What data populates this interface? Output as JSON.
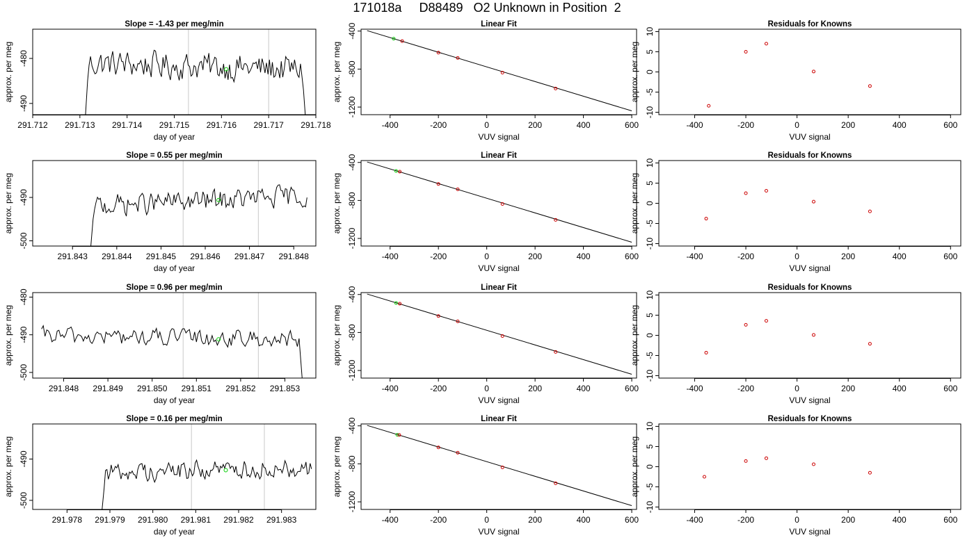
{
  "page": {
    "title": "171018a     D88489   O2 Unknown in Position  2"
  },
  "colors": {
    "axis": "#000000",
    "trace": "#000000",
    "marker_lines": "#c8c8c8",
    "unknown_point": "#00cc00",
    "known_points": "#cc0000",
    "fit_line": "#000000"
  },
  "chart_data": [
    {
      "type": "line",
      "title": "Slope =  -1.43  per meg/min",
      "xlabel": "day of year",
      "ylabel": "approx. per meg",
      "xlim": [
        291.712,
        291.718
      ],
      "ylim": [
        -492.5,
        -473.5
      ],
      "xticks": [
        "291.712",
        "291.713",
        "291.714",
        "291.715",
        "291.716",
        "291.717",
        "291.718"
      ],
      "xtick_values": [
        291.712,
        291.713,
        291.714,
        291.715,
        291.716,
        291.717,
        291.718
      ],
      "yticks": [
        -480,
        -490
      ],
      "yticks_labels": [
        "-480",
        "-490"
      ],
      "vlines": [
        291.7153,
        291.717
      ],
      "trace_x_range": [
        291.7131,
        291.7178
      ],
      "trace_level": [
        -481.0,
        -482.5
      ],
      "trace_drop_start": [
        -496,
        -485
      ],
      "trace_drop_end": [
        -487,
        -496
      ],
      "trace_amp": 2.1,
      "unknown_point": {
        "x": 291.7161,
        "y": -482.4
      }
    },
    {
      "type": "scatter",
      "title": "Linear Fit",
      "xlabel": "VUV signal",
      "ylabel": "approx. per meg",
      "xlim": [
        -520,
        620
      ],
      "ylim": [
        -1280,
        -380
      ],
      "xticks": [
        "-400",
        "-200",
        "0",
        "200",
        "400",
        "600"
      ],
      "xtick_values": [
        -400,
        -200,
        0,
        200,
        400,
        600
      ],
      "yticks": [
        -400,
        -800,
        -1200
      ],
      "yticks_labels": [
        "-400",
        "-800",
        "-1200"
      ],
      "fit_line": {
        "x": [
          -495,
          600
        ],
        "y": [
          -395,
          -1240
        ]
      },
      "unknown": {
        "x": [
          -385
        ],
        "y": [
          -480
        ]
      },
      "knowns": {
        "x": [
          -350,
          -200,
          -120,
          65,
          285
        ],
        "y": [
          -505,
          -627,
          -683,
          -837,
          -1005
        ]
      }
    },
    {
      "type": "scatter",
      "title": "Residuals for Knowns",
      "xlabel": "VUV signal",
      "ylabel": "approx. per meg",
      "xlim": [
        -540,
        640
      ],
      "ylim": [
        -10.6,
        10.6
      ],
      "xticks": [
        "-400",
        "-200",
        "0",
        "200",
        "400",
        "600"
      ],
      "xtick_values": [
        -400,
        -200,
        0,
        200,
        400,
        600
      ],
      "yticks": [
        10,
        5,
        0,
        -5,
        -10
      ],
      "yticks_labels": [
        "10",
        "5",
        "0",
        "-5",
        "-10"
      ],
      "knowns": {
        "x": [
          -345,
          -200,
          -120,
          65,
          285
        ],
        "y": [
          -8.4,
          5.0,
          7.0,
          0.1,
          -3.5
        ]
      }
    },
    {
      "type": "line",
      "title": "Slope =  0.55  per meg/min",
      "xlabel": "day of year",
      "ylabel": "approx. per meg",
      "xlim": [
        291.8421,
        291.8485
      ],
      "ylim": [
        -501.2,
        -481.5
      ],
      "xticks": [
        "291.843",
        "291.844",
        "291.845",
        "291.846",
        "291.847",
        "291.848"
      ],
      "xtick_values": [
        291.843,
        291.844,
        291.845,
        291.846,
        291.847,
        291.848
      ],
      "yticks": [
        -490,
        -500
      ],
      "yticks_labels": [
        "-490",
        "-500"
      ],
      "vlines": [
        291.8455,
        291.8472
      ],
      "trace_x_range": [
        291.8434,
        291.8483
      ],
      "trace_level": [
        -492.0,
        -489.7
      ],
      "trace_drop_start": [
        -503,
        -495
      ],
      "trace_drop_end": null,
      "trace_amp": 1.7,
      "unknown_point": {
        "x": 291.8463,
        "y": -490.6
      }
    },
    {
      "type": "scatter",
      "title": "Linear Fit",
      "xlabel": "VUV signal",
      "ylabel": "approx. per meg",
      "xlim": [
        -520,
        620
      ],
      "ylim": [
        -1280,
        -380
      ],
      "xticks": [
        "-400",
        "-200",
        "0",
        "200",
        "400",
        "600"
      ],
      "xtick_values": [
        -400,
        -200,
        0,
        200,
        400,
        600
      ],
      "yticks": [
        -400,
        -800,
        -1200
      ],
      "yticks_labels": [
        "-400",
        "-800",
        "-1200"
      ],
      "fit_line": {
        "x": [
          -495,
          600
        ],
        "y": [
          -395,
          -1240
        ]
      },
      "unknown": {
        "x": [
          -375
        ],
        "y": [
          -490
        ]
      },
      "knowns": {
        "x": [
          -360,
          -200,
          -120,
          65,
          285
        ],
        "y": [
          -497,
          -627,
          -683,
          -837,
          -1005
        ]
      }
    },
    {
      "type": "scatter",
      "title": "Residuals for Knowns",
      "xlabel": "VUV signal",
      "ylabel": "approx. per meg",
      "xlim": [
        -540,
        640
      ],
      "ylim": [
        -10.6,
        10.6
      ],
      "xticks": [
        "-400",
        "-200",
        "0",
        "200",
        "400",
        "600"
      ],
      "xtick_values": [
        -400,
        -200,
        0,
        200,
        400,
        600
      ],
      "yticks": [
        10,
        5,
        0,
        -5,
        -10
      ],
      "yticks_labels": [
        "10",
        "5",
        "0",
        "-5",
        "-10"
      ],
      "knowns": {
        "x": [
          -355,
          -200,
          -120,
          65,
          285
        ],
        "y": [
          -3.8,
          2.5,
          3.1,
          0.4,
          -2.0
        ]
      }
    },
    {
      "type": "line",
      "title": "Slope =  0.96  per meg/min",
      "xlabel": "day of year",
      "ylabel": "approx. per meg",
      "xlim": [
        291.8473,
        291.8537
      ],
      "ylim": [
        -501.5,
        -478.8
      ],
      "xticks": [
        "291.848",
        "291.849",
        "291.850",
        "291.851",
        "291.852",
        "291.853"
      ],
      "xtick_values": [
        291.848,
        291.849,
        291.85,
        291.851,
        291.852,
        291.853
      ],
      "yticks": [
        -480,
        -490,
        -500
      ],
      "yticks_labels": [
        "-480",
        "-490",
        "-500"
      ],
      "vlines": [
        291.8507,
        291.8524
      ],
      "trace_x_range": [
        291.8475,
        291.8534
      ],
      "trace_level": [
        -490.3,
        -491.2
      ],
      "trace_drop_start": null,
      "trace_drop_end": [
        -491,
        -503
      ],
      "trace_amp": 1.6,
      "unknown_point": {
        "x": 291.8515,
        "y": -491.2
      }
    },
    {
      "type": "scatter",
      "title": "Linear Fit",
      "xlabel": "VUV signal",
      "ylabel": "approx. per meg",
      "xlim": [
        -520,
        620
      ],
      "ylim": [
        -1280,
        -380
      ],
      "xticks": [
        "-400",
        "-200",
        "0",
        "200",
        "400",
        "600"
      ],
      "xtick_values": [
        -400,
        -200,
        0,
        200,
        400,
        600
      ],
      "yticks": [
        -400,
        -800,
        -1200
      ],
      "yticks_labels": [
        "-400",
        "-800",
        "-1200"
      ],
      "fit_line": {
        "x": [
          -495,
          600
        ],
        "y": [
          -395,
          -1240
        ]
      },
      "unknown": {
        "x": [
          -375
        ],
        "y": [
          -490
        ]
      },
      "knowns": {
        "x": [
          -360,
          -200,
          -120,
          65,
          285
        ],
        "y": [
          -497,
          -627,
          -683,
          -837,
          -1005
        ]
      }
    },
    {
      "type": "scatter",
      "title": "Residuals for Knowns",
      "xlabel": "VUV signal",
      "ylabel": "approx. per meg",
      "xlim": [
        -540,
        640
      ],
      "ylim": [
        -10.6,
        10.6
      ],
      "xticks": [
        "-400",
        "-200",
        "0",
        "200",
        "400",
        "600"
      ],
      "xtick_values": [
        -400,
        -200,
        0,
        200,
        400,
        600
      ],
      "yticks": [
        10,
        5,
        0,
        -5,
        -10
      ],
      "yticks_labels": [
        "10",
        "5",
        "0",
        "-5",
        "-10"
      ],
      "knowns": {
        "x": [
          -355,
          -200,
          -120,
          65,
          285
        ],
        "y": [
          -4.3,
          2.6,
          3.6,
          0.1,
          -2.1
        ]
      }
    },
    {
      "type": "line",
      "title": "Slope =  0.16  per meg/min",
      "xlabel": "day of year",
      "ylabel": "approx. per meg",
      "xlim": [
        291.9772,
        291.9838
      ],
      "ylim": [
        -502.2,
        -481.5
      ],
      "xticks": [
        "291.978",
        "291.979",
        "291.980",
        "291.981",
        "291.982",
        "291.983"
      ],
      "xtick_values": [
        291.978,
        291.979,
        291.98,
        291.981,
        291.982,
        291.983
      ],
      "yticks": [
        -490,
        -500
      ],
      "yticks_labels": [
        "-490",
        "-500"
      ],
      "vlines": [
        291.9809,
        291.9826
      ],
      "trace_x_range": [
        291.9788,
        291.9837
      ],
      "trace_level": [
        -493.3,
        -492.0
      ],
      "trace_drop_start": [
        -504,
        -497
      ],
      "trace_drop_end": null,
      "trace_amp": 1.6,
      "unknown_point": {
        "x": 291.9817,
        "y": -492.7
      }
    },
    {
      "type": "scatter",
      "title": "Linear Fit",
      "xlabel": "VUV signal",
      "ylabel": "approx. per meg",
      "xlim": [
        -520,
        620
      ],
      "ylim": [
        -1280,
        -380
      ],
      "xticks": [
        "-400",
        "-200",
        "0",
        "200",
        "400",
        "600"
      ],
      "xtick_values": [
        -400,
        -200,
        0,
        200,
        400,
        600
      ],
      "yticks": [
        -400,
        -800,
        -1200
      ],
      "yticks_labels": [
        "-400",
        "-800",
        "-1200"
      ],
      "fit_line": {
        "x": [
          -495,
          600
        ],
        "y": [
          -395,
          -1240
        ]
      },
      "unknown": {
        "x": [
          -370
        ],
        "y": [
          -494
        ]
      },
      "knowns": {
        "x": [
          -362,
          -200,
          -120,
          65,
          285
        ],
        "y": [
          -496,
          -627,
          -683,
          -837,
          -1005
        ]
      }
    },
    {
      "type": "scatter",
      "title": "Residuals for Knowns",
      "xlabel": "VUV signal",
      "ylabel": "approx. per meg",
      "xlim": [
        -540,
        640
      ],
      "ylim": [
        -10.6,
        10.6
      ],
      "xticks": [
        "-400",
        "-200",
        "0",
        "200",
        "400",
        "600"
      ],
      "xtick_values": [
        -400,
        -200,
        0,
        200,
        400,
        600
      ],
      "yticks": [
        10,
        5,
        0,
        -5,
        -10
      ],
      "yticks_labels": [
        "10",
        "5",
        "0",
        "-5",
        "-10"
      ],
      "knowns": {
        "x": [
          -362,
          -200,
          -120,
          65,
          285
        ],
        "y": [
          -2.5,
          1.4,
          2.1,
          0.6,
          -1.5
        ]
      }
    }
  ]
}
